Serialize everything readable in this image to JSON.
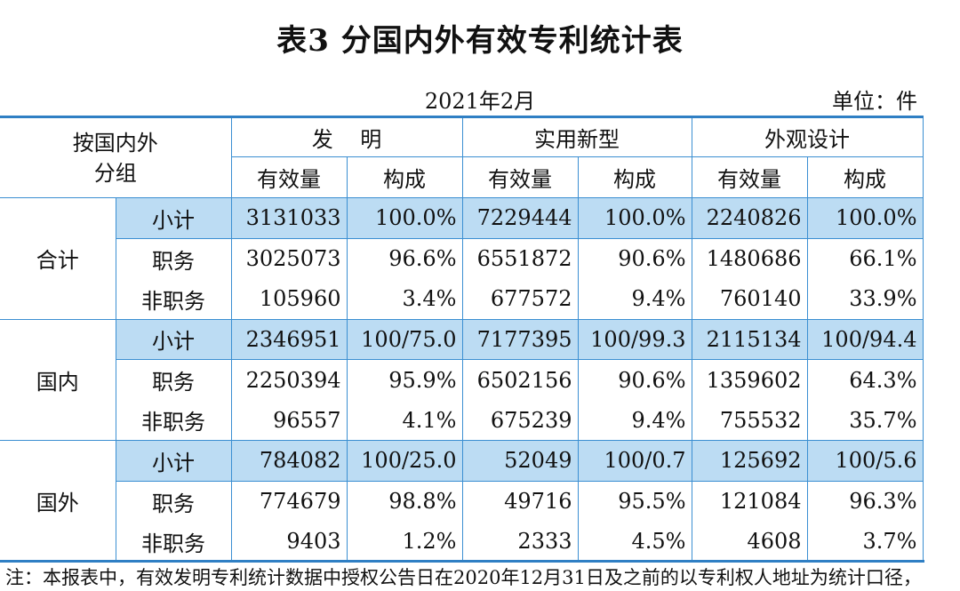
{
  "title": "表3  分国内外有效专利统计表",
  "date": "2021年2月",
  "unit": "单位：件",
  "header": {
    "corner_line1": "按国内外",
    "corner_line2": "分组",
    "groups": [
      "发    明",
      "实用新型",
      "外观设计"
    ],
    "sub": [
      "有效量",
      "构成",
      "有效量",
      "构成",
      "有效量",
      "构成"
    ]
  },
  "sections": [
    {
      "label": "合计",
      "rows": [
        {
          "label": "小计",
          "values": [
            "3131033",
            "100.0%",
            "7229444",
            "100.0%",
            "2240826",
            "100.0%"
          ]
        },
        {
          "label": "职务",
          "values": [
            "3025073",
            "96.6%",
            "6551872",
            "90.6%",
            "1480686",
            "66.1%"
          ]
        },
        {
          "label": "非职务",
          "values": [
            "105960",
            "3.4%",
            "677572",
            "9.4%",
            "760140",
            "33.9%"
          ]
        }
      ]
    },
    {
      "label": "国内",
      "rows": [
        {
          "label": "小计",
          "values": [
            "2346951",
            "100/75.0",
            "7177395",
            "100/99.3",
            "2115134",
            "100/94.4"
          ]
        },
        {
          "label": "职务",
          "values": [
            "2250394",
            "95.9%",
            "6502156",
            "90.6%",
            "1359602",
            "64.3%"
          ]
        },
        {
          "label": "非职务",
          "values": [
            "96557",
            "4.1%",
            "675239",
            "9.4%",
            "755532",
            "35.7%"
          ]
        }
      ]
    },
    {
      "label": "国外",
      "rows": [
        {
          "label": "小计",
          "values": [
            "784082",
            "100/25.0",
            "52049",
            "100/0.7",
            "125692",
            "100/5.6"
          ]
        },
        {
          "label": "职务",
          "values": [
            "774679",
            "98.8%",
            "49716",
            "95.5%",
            "121084",
            "96.3%"
          ]
        },
        {
          "label": "非职务",
          "values": [
            "9403",
            "1.2%",
            "2333",
            "4.5%",
            "4608",
            "3.7%"
          ]
        }
      ]
    }
  ],
  "footnote": "注：本报表中，有效发明专利统计数据中授权公告日在2020年12月31日及之前的以专利权人地址为统计口径，"
}
